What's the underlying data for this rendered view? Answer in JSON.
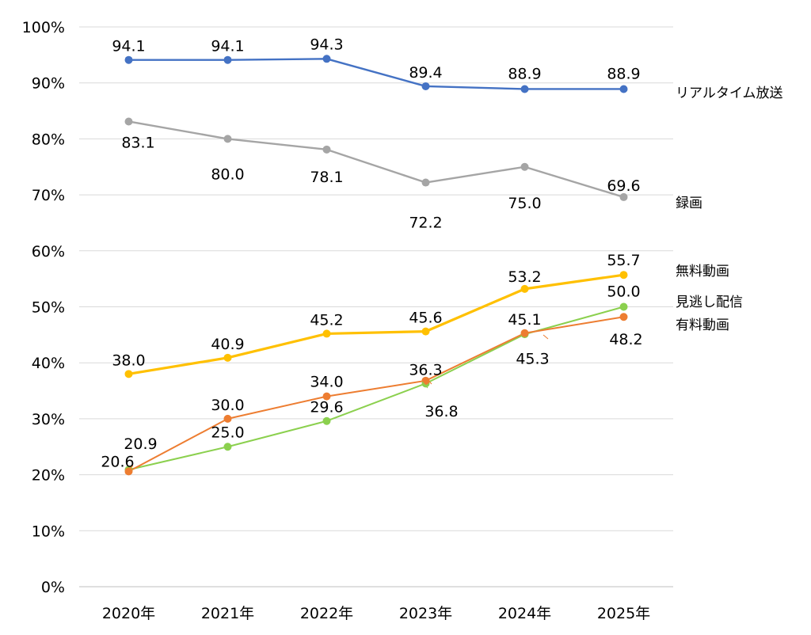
{
  "chart_data": {
    "type": "line",
    "title": "",
    "xlabel": "",
    "ylabel": "",
    "categories": [
      "2020年",
      "2021年",
      "2022年",
      "2023年",
      "2024年",
      "2025年"
    ],
    "ylim": [
      0,
      100
    ],
    "yticks": [
      0,
      10,
      20,
      30,
      40,
      50,
      60,
      70,
      80,
      90,
      100
    ],
    "ytick_labels": [
      "0%",
      "10%",
      "20%",
      "30%",
      "40%",
      "50%",
      "60%",
      "70%",
      "80%",
      "90%",
      "100%"
    ],
    "grid": true,
    "legend": "direct labels at right end of lines",
    "series": [
      {
        "name": "リアルタイム放送",
        "color": "#4472C4",
        "values": [
          94.1,
          94.1,
          94.3,
          89.4,
          88.9,
          88.9
        ],
        "labels": [
          "94.1",
          "94.1",
          "94.3",
          "89.4",
          "88.9",
          "88.9"
        ]
      },
      {
        "name": "録画",
        "color": "#A5A5A5",
        "values": [
          83.1,
          80.0,
          78.1,
          72.2,
          75.0,
          69.6
        ],
        "labels": [
          "83.1",
          "80.0",
          "78.1",
          "72.2",
          "75.0",
          "69.6"
        ]
      },
      {
        "name": "無料動画",
        "color": "#FFC000",
        "values": [
          38.0,
          40.9,
          45.2,
          45.6,
          53.2,
          55.7
        ],
        "labels": [
          "38.0",
          "40.9",
          "45.2",
          "45.6",
          "53.2",
          "55.7"
        ]
      },
      {
        "name": "見逃し配信",
        "color": "#8BD04E",
        "values": [
          20.9,
          25.0,
          29.6,
          36.3,
          45.1,
          50.0
        ],
        "labels": [
          "20.9",
          "25.0",
          "29.6",
          "36.3",
          "45.1",
          "50.0"
        ]
      },
      {
        "name": "有料動画",
        "color": "#ED7D31",
        "values": [
          20.6,
          30.0,
          34.0,
          36.8,
          45.3,
          48.2
        ],
        "labels": [
          "20.6",
          "30.0",
          "34.0",
          "36.8",
          "45.3",
          "48.2"
        ]
      }
    ]
  }
}
